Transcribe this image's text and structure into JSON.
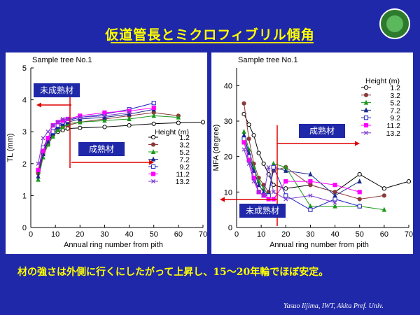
{
  "slide": {
    "title": "仮道管長とミクロフィブリル傾角",
    "summary": "材の強さは外側に行くにしたがって上昇し、15〜20年輪でほぼ安定。",
    "credit": "Yasuo Iijima, IWT, Akita Pref.  Univ.",
    "colors": {
      "background": "#1f28a8",
      "title": "#ffff00",
      "panel": "#ffffff",
      "arrow": "#e00000",
      "annotation_bg": "#1f28a8"
    }
  },
  "chart_data": [
    {
      "type": "line",
      "title": "Sample tree No.1",
      "xlabel": "Annual ring number from pith",
      "ylabel": "TL (mm)",
      "xlim": [
        0,
        70
      ],
      "ylim": [
        0,
        5
      ],
      "xticks": [
        0,
        10,
        20,
        30,
        40,
        50,
        60,
        70
      ],
      "yticks": [
        1,
        2,
        3,
        4,
        5
      ],
      "legend_title": "Height (m)",
      "legend_position": "right",
      "annotations": [
        {
          "text": "未成熟材",
          "direction": "left"
        },
        {
          "text": "成熟材",
          "direction": "right"
        }
      ],
      "series": [
        {
          "name": "1.2",
          "color": "#000000",
          "marker": "circle-open",
          "points": [
            [
              3,
              1.7
            ],
            [
              5,
              2.4
            ],
            [
              7,
              2.7
            ],
            [
              9,
              2.9
            ],
            [
              11,
              3.0
            ],
            [
              13,
              3.05
            ],
            [
              15,
              3.1
            ],
            [
              20,
              3.12
            ],
            [
              30,
              3.15
            ],
            [
              40,
              3.2
            ],
            [
              50,
              3.25
            ],
            [
              60,
              3.28
            ],
            [
              70,
              3.3
            ]
          ]
        },
        {
          "name": "3.2",
          "color": "#8b3a3a",
          "marker": "circle-filled",
          "points": [
            [
              3,
              1.7
            ],
            [
              5,
              2.3
            ],
            [
              7,
              2.6
            ],
            [
              9,
              2.9
            ],
            [
              11,
              3.1
            ],
            [
              13,
              3.15
            ],
            [
              15,
              3.2
            ],
            [
              20,
              3.3
            ],
            [
              30,
              3.4
            ],
            [
              40,
              3.5
            ],
            [
              50,
              3.6
            ],
            [
              60,
              3.5
            ]
          ]
        },
        {
          "name": "5.2",
          "color": "#1a9a1a",
          "marker": "triangle-filled",
          "points": [
            [
              3,
              1.5
            ],
            [
              5,
              2.2
            ],
            [
              7,
              2.6
            ],
            [
              9,
              2.85
            ],
            [
              11,
              3.05
            ],
            [
              13,
              3.15
            ],
            [
              15,
              3.25
            ],
            [
              20,
              3.3
            ],
            [
              30,
              3.35
            ],
            [
              40,
              3.4
            ],
            [
              50,
              3.5
            ],
            [
              60,
              3.45
            ]
          ]
        },
        {
          "name": "7.2",
          "color": "#1a2a8a",
          "marker": "triangle-filled",
          "points": [
            [
              3,
              1.6
            ],
            [
              5,
              2.3
            ],
            [
              7,
              2.7
            ],
            [
              9,
              2.95
            ],
            [
              11,
              3.15
            ],
            [
              13,
              3.25
            ],
            [
              15,
              3.3
            ],
            [
              20,
              3.4
            ],
            [
              30,
              3.45
            ],
            [
              40,
              3.55
            ],
            [
              50,
              3.7
            ]
          ]
        },
        {
          "name": "9.2",
          "color": "#2020c0",
          "marker": "square-open",
          "points": [
            [
              3,
              1.8
            ],
            [
              5,
              2.5
            ],
            [
              7,
              2.8
            ],
            [
              9,
              3.0
            ],
            [
              11,
              3.2
            ],
            [
              13,
              3.3
            ],
            [
              15,
              3.35
            ],
            [
              20,
              3.45
            ],
            [
              30,
              3.55
            ],
            [
              40,
              3.7
            ],
            [
              50,
              3.9
            ]
          ]
        },
        {
          "name": "11.2",
          "color": "#ff00ff",
          "marker": "square-filled",
          "points": [
            [
              3,
              1.8
            ],
            [
              5,
              2.4
            ],
            [
              7,
              2.8
            ],
            [
              9,
              3.2
            ],
            [
              11,
              3.3
            ],
            [
              13,
              3.35
            ],
            [
              15,
              3.4
            ],
            [
              20,
              3.5
            ],
            [
              30,
              3.6
            ],
            [
              40,
              3.65
            ],
            [
              50,
              3.75
            ]
          ]
        },
        {
          "name": "13.2",
          "color": "#7a3ad0",
          "marker": "x",
          "points": [
            [
              3,
              2.0
            ],
            [
              5,
              2.8
            ],
            [
              7,
              3.0
            ],
            [
              9,
              3.2
            ],
            [
              11,
              3.3
            ],
            [
              13,
              3.4
            ],
            [
              15,
              3.4
            ],
            [
              20,
              3.45
            ],
            [
              30,
              3.5
            ],
            [
              40,
              3.6
            ]
          ]
        }
      ]
    },
    {
      "type": "line",
      "title": "Sample tree No.1",
      "xlabel": "Annual ring number from pith",
      "ylabel": "MFA (degree)",
      "xlim": [
        0,
        70
      ],
      "ylim": [
        0,
        45
      ],
      "xticks": [
        0,
        10,
        20,
        30,
        40,
        50,
        60,
        70
      ],
      "yticks": [
        10,
        20,
        30,
        40
      ],
      "legend_title": "Height (m)",
      "legend_position": "right",
      "annotations": [
        {
          "text": "成熟材",
          "direction": "right"
        },
        {
          "text": "未成熟材",
          "direction": "left"
        }
      ],
      "series": [
        {
          "name": "1.2",
          "color": "#000000",
          "marker": "circle-open",
          "points": [
            [
              3,
              32
            ],
            [
              5,
              29
            ],
            [
              7,
              26
            ],
            [
              9,
              21
            ],
            [
              11,
              18
            ],
            [
              13,
              15
            ],
            [
              15,
              12
            ],
            [
              20,
              11
            ],
            [
              30,
              12
            ],
            [
              40,
              10
            ],
            [
              50,
              15
            ],
            [
              60,
              11
            ],
            [
              70,
              13
            ]
          ]
        },
        {
          "name": "3.2",
          "color": "#8b3a3a",
          "marker": "circle-filled",
          "points": [
            [
              3,
              35
            ],
            [
              5,
              25
            ],
            [
              7,
              18
            ],
            [
              9,
              14
            ],
            [
              11,
              12
            ],
            [
              13,
              10
            ],
            [
              15,
              16
            ],
            [
              20,
              17
            ],
            [
              30,
              12
            ],
            [
              40,
              10
            ],
            [
              50,
              8
            ],
            [
              60,
              9
            ]
          ]
        },
        {
          "name": "5.2",
          "color": "#1a9a1a",
          "marker": "triangle-filled",
          "points": [
            [
              3,
              27
            ],
            [
              5,
              22
            ],
            [
              7,
              17
            ],
            [
              9,
              13
            ],
            [
              11,
              11
            ],
            [
              13,
              9
            ],
            [
              15,
              18
            ],
            [
              20,
              17
            ],
            [
              30,
              6
            ],
            [
              40,
              6
            ],
            [
              50,
              6
            ],
            [
              60,
              5
            ]
          ]
        },
        {
          "name": "7.2",
          "color": "#1a2a8a",
          "marker": "triangle-filled",
          "points": [
            [
              3,
              26
            ],
            [
              5,
              21
            ],
            [
              7,
              16
            ],
            [
              9,
              12
            ],
            [
              11,
              10
            ],
            [
              13,
              9
            ],
            [
              15,
              17
            ],
            [
              20,
              16
            ],
            [
              30,
              15
            ],
            [
              40,
              9
            ],
            [
              50,
              13
            ]
          ]
        },
        {
          "name": "9.2",
          "color": "#2020c0",
          "marker": "square-open",
          "points": [
            [
              3,
              25
            ],
            [
              5,
              20
            ],
            [
              7,
              15
            ],
            [
              9,
              10
            ],
            [
              11,
              9
            ],
            [
              13,
              9
            ],
            [
              15,
              17
            ],
            [
              20,
              9
            ],
            [
              30,
              5
            ],
            [
              40,
              8
            ],
            [
              50,
              6
            ]
          ]
        },
        {
          "name": "11.2",
          "color": "#ff00ff",
          "marker": "square-filled",
          "points": [
            [
              3,
              24
            ],
            [
              5,
              19
            ],
            [
              7,
              14
            ],
            [
              9,
              10
            ],
            [
              11,
              9
            ],
            [
              13,
              8
            ],
            [
              15,
              8
            ],
            [
              20,
              13
            ],
            [
              30,
              13
            ],
            [
              40,
              12
            ],
            [
              50,
              10
            ]
          ]
        },
        {
          "name": "13.2",
          "color": "#7a3ad0",
          "marker": "x",
          "points": [
            [
              3,
              22
            ],
            [
              5,
              18
            ],
            [
              7,
              13
            ],
            [
              9,
              10
            ],
            [
              11,
              9
            ],
            [
              13,
              17
            ],
            [
              15,
              10
            ],
            [
              20,
              8
            ],
            [
              30,
              9
            ],
            [
              40,
              7
            ]
          ]
        }
      ]
    }
  ]
}
